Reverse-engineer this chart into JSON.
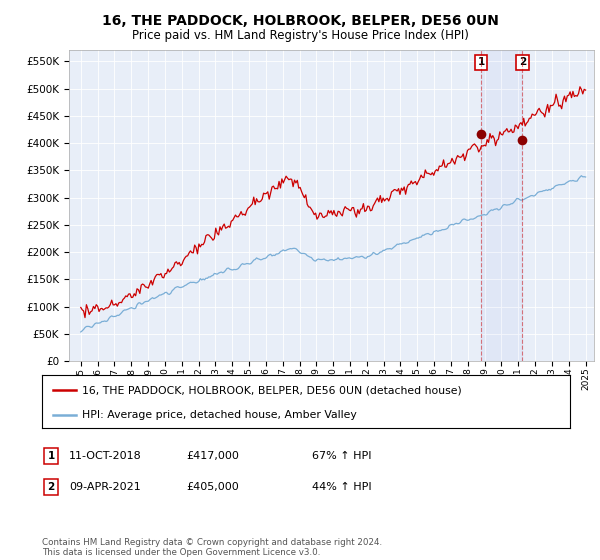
{
  "title": "16, THE PADDOCK, HOLBROOK, BELPER, DE56 0UN",
  "subtitle": "Price paid vs. HM Land Registry's House Price Index (HPI)",
  "ylabel_ticks": [
    "£0",
    "£50K",
    "£100K",
    "£150K",
    "£200K",
    "£250K",
    "£300K",
    "£350K",
    "£400K",
    "£450K",
    "£500K",
    "£550K"
  ],
  "ytick_values": [
    0,
    50000,
    100000,
    150000,
    200000,
    250000,
    300000,
    350000,
    400000,
    450000,
    500000,
    550000
  ],
  "ylim": [
    0,
    570000
  ],
  "sale1_x": 2018.79,
  "sale1_price": 417000,
  "sale1_date": "11-OCT-2018",
  "sale1_label": "67% ↑ HPI",
  "sale2_x": 2021.25,
  "sale2_price": 405000,
  "sale2_date": "09-APR-2021",
  "sale2_label": "44% ↑ HPI",
  "property_line_color": "#cc0000",
  "hpi_line_color": "#7aaed6",
  "vline_color": "#cc0000",
  "background_color": "#ffffff",
  "plot_bg_color": "#e8eef8",
  "grid_color": "#ffffff",
  "legend_label_property": "16, THE PADDOCK, HOLBROOK, BELPER, DE56 0UN (detached house)",
  "legend_label_hpi": "HPI: Average price, detached house, Amber Valley",
  "footer": "Contains HM Land Registry data © Crown copyright and database right 2024.\nThis data is licensed under the Open Government Licence v3.0.",
  "title_fontsize": 10,
  "subtitle_fontsize": 8.5,
  "tick_fontsize": 7.5
}
